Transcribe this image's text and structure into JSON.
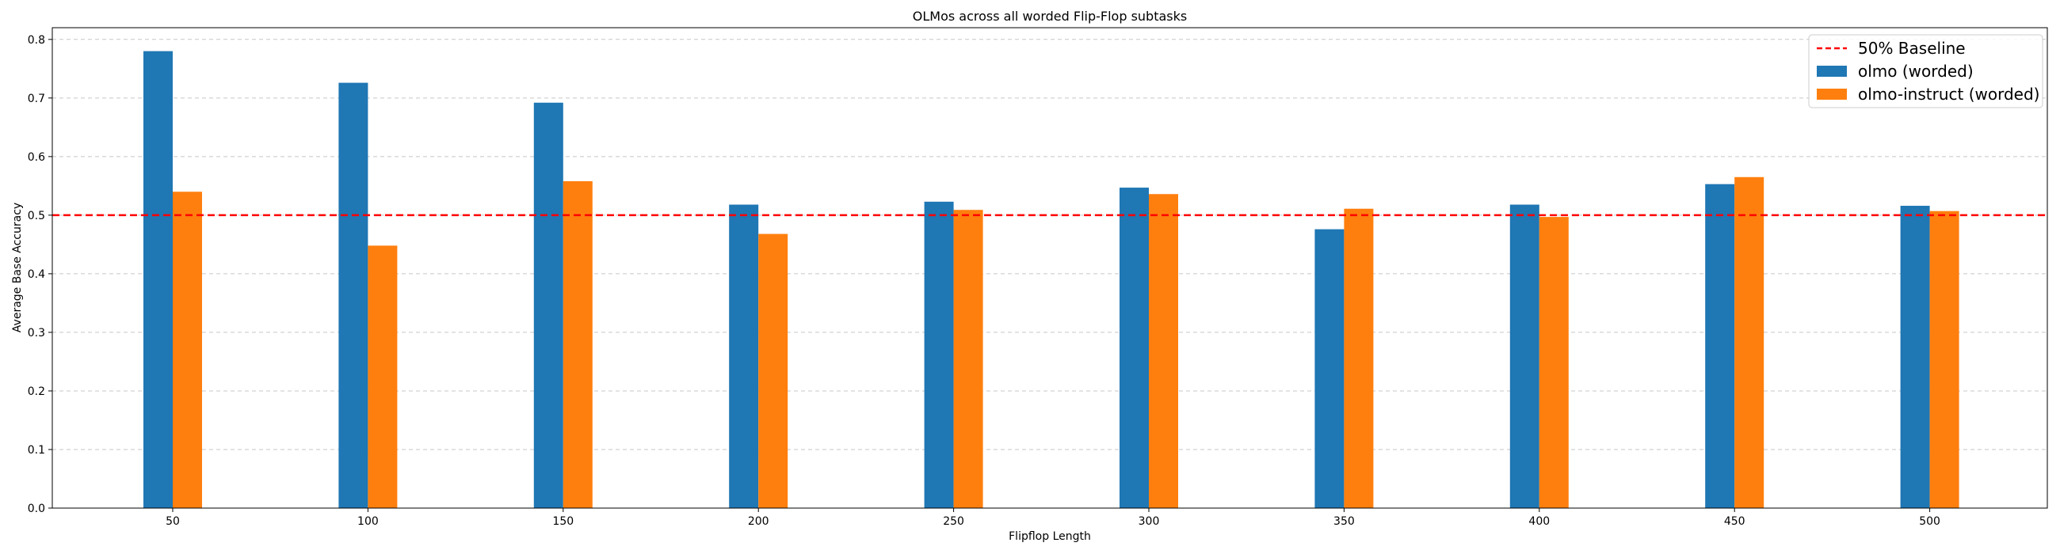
{
  "chart_data": {
    "type": "bar",
    "title": "OLMos across all worded Flip-Flop subtasks",
    "xlabel": "Flipflop Length",
    "ylabel": "Average Base Accuracy",
    "categories": [
      "50",
      "100",
      "150",
      "200",
      "250",
      "300",
      "350",
      "400",
      "450",
      "500"
    ],
    "series": [
      {
        "name": "olmo (worded)",
        "color": "#1f77b4",
        "values": [
          0.78,
          0.726,
          0.692,
          0.518,
          0.523,
          0.547,
          0.476,
          0.518,
          0.553,
          0.516
        ]
      },
      {
        "name": "olmo-instruct (worded)",
        "color": "#ff7f0e",
        "values": [
          0.54,
          0.448,
          0.558,
          0.468,
          0.509,
          0.536,
          0.511,
          0.497,
          0.565,
          0.507
        ]
      }
    ],
    "baseline": {
      "name": "50% Baseline",
      "value": 0.5,
      "color": "#ff0000",
      "style": "dashed"
    },
    "ylim": [
      0,
      0.82
    ],
    "yticks": [
      "0.0",
      "0.1",
      "0.2",
      "0.3",
      "0.4",
      "0.5",
      "0.6",
      "0.7",
      "0.8"
    ],
    "grid": "y-dashed",
    "legend_position": "top-right"
  }
}
